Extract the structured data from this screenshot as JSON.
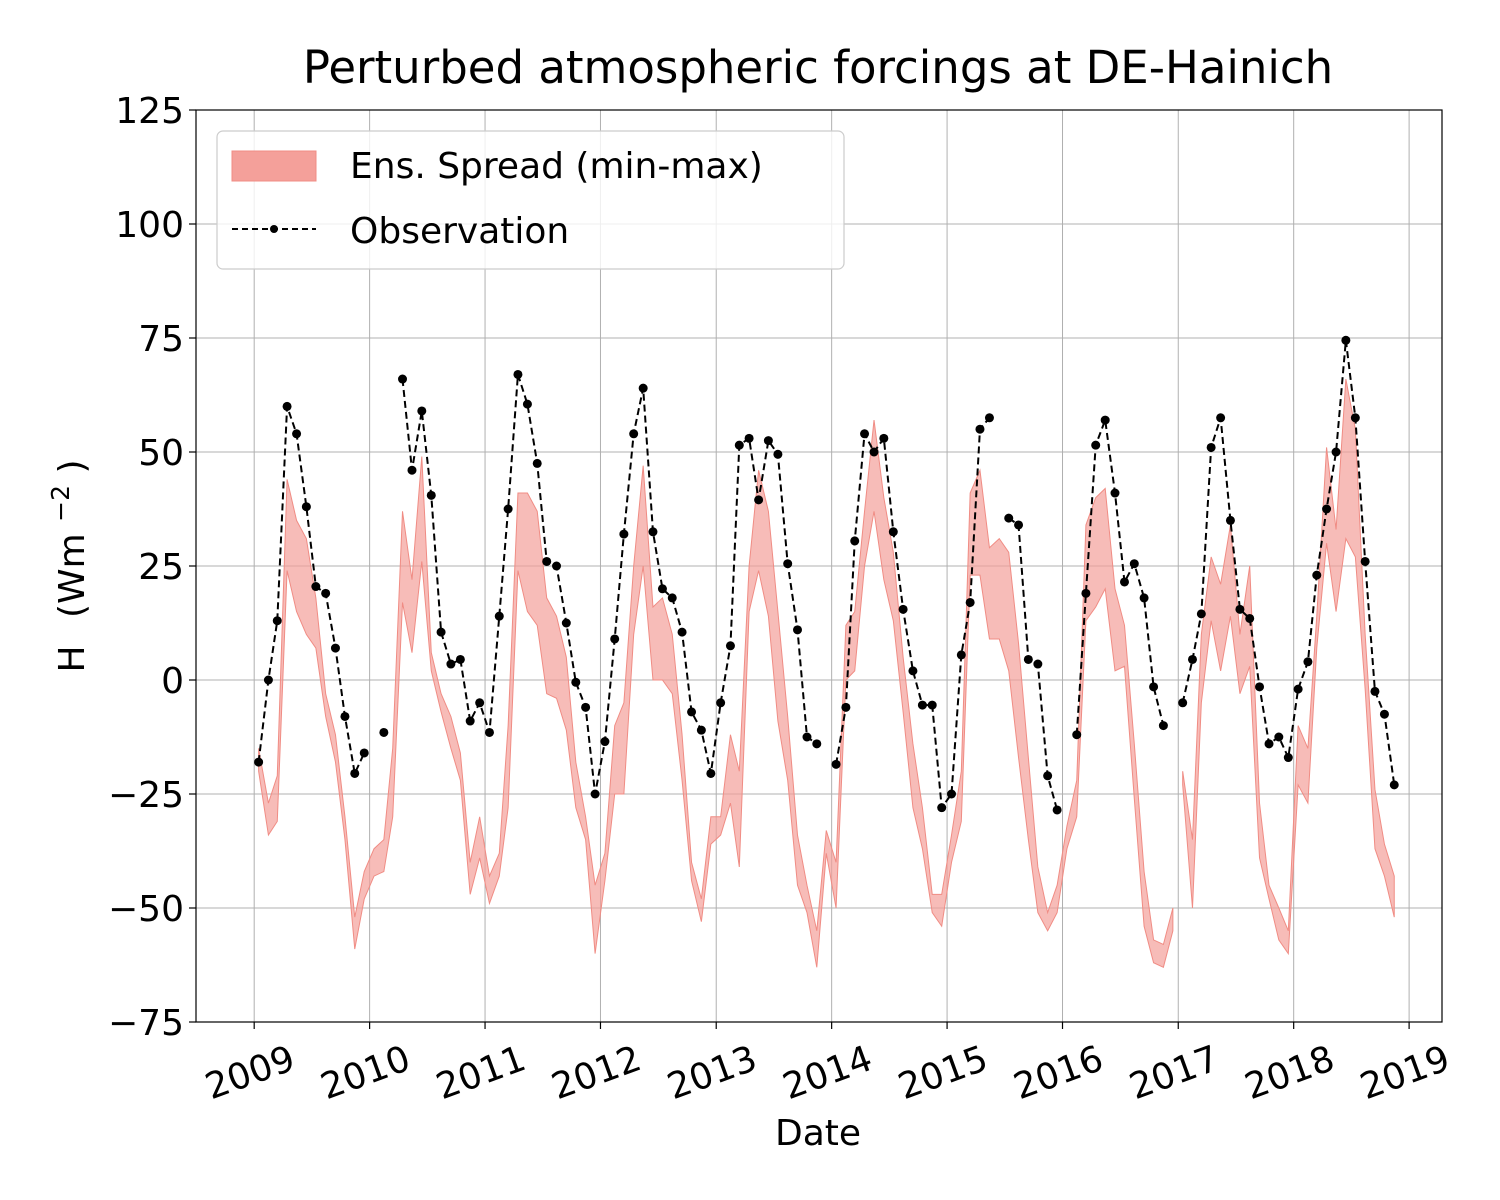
{
  "chart_data": {
    "type": "line",
    "title": "Perturbed atmospheric forcings at DE-Hainich",
    "xlabel": "Date",
    "ylabel": "H",
    "ylabel_unit": "(Wm",
    "ylabel_exp": "−2",
    "ylabel_close": ")",
    "ylim": [
      -75,
      125
    ],
    "xlim": [
      "2008-07-01",
      "2019-04-15"
    ],
    "yticks": [
      -75,
      -50,
      -25,
      0,
      25,
      50,
      75,
      100,
      125
    ],
    "ytick_labels": [
      "−75",
      "−50",
      "−25",
      "0",
      "25",
      "50",
      "75",
      "100",
      "125"
    ],
    "xticks": [
      "2009",
      "2010",
      "2011",
      "2012",
      "2013",
      "2014",
      "2015",
      "2016",
      "2017",
      "2018",
      "2019"
    ],
    "xtick_rotation": -20,
    "grid": true,
    "legend": {
      "position": "top-left",
      "entries": [
        {
          "label": "Ens. Spread (min-max)",
          "kind": "band",
          "color": "#f4a09a"
        },
        {
          "label": "Observation",
          "kind": "dashed-line-marker",
          "color": "#000000"
        }
      ]
    },
    "colors": {
      "band": "#f4a09a",
      "band_edge": "#f08c84",
      "observation": "#000000"
    },
    "series": [
      {
        "name": "Observation",
        "x": [
          "2009-01",
          "2009-02",
          "2009-03",
          "2009-04",
          "2009-05",
          "2009-06",
          "2009-07",
          "2009-08",
          "2009-09",
          "2009-10",
          "2009-11",
          "2009-12",
          "2010-01",
          "2010-02",
          "2010-03",
          "2010-04",
          "2010-05",
          "2010-06",
          "2010-07",
          "2010-08",
          "2010-09",
          "2010-10",
          "2010-11",
          "2010-12",
          "2011-01",
          "2011-02",
          "2011-03",
          "2011-04",
          "2011-05",
          "2011-06",
          "2011-07",
          "2011-08",
          "2011-09",
          "2011-10",
          "2011-11",
          "2011-12",
          "2012-01",
          "2012-02",
          "2012-03",
          "2012-04",
          "2012-05",
          "2012-06",
          "2012-07",
          "2012-08",
          "2012-09",
          "2012-10",
          "2012-11",
          "2012-12",
          "2013-01",
          "2013-02",
          "2013-03",
          "2013-04",
          "2013-05",
          "2013-06",
          "2013-07",
          "2013-08",
          "2013-09",
          "2013-10",
          "2013-11",
          "2013-12",
          "2014-01",
          "2014-02",
          "2014-03",
          "2014-04",
          "2014-05",
          "2014-06",
          "2014-07",
          "2014-08",
          "2014-09",
          "2014-10",
          "2014-11",
          "2014-12",
          "2015-01",
          "2015-02",
          "2015-03",
          "2015-04",
          "2015-05",
          "2015-06",
          "2015-07",
          "2015-08",
          "2015-09",
          "2015-10",
          "2015-11",
          "2015-12",
          "2016-01",
          "2016-02",
          "2016-03",
          "2016-04",
          "2016-05",
          "2016-06",
          "2016-07",
          "2016-08",
          "2016-09",
          "2016-10",
          "2016-11",
          "2016-12",
          "2017-01",
          "2017-02",
          "2017-03",
          "2017-04",
          "2017-05",
          "2017-06",
          "2017-07",
          "2017-08",
          "2017-09",
          "2017-10",
          "2017-11",
          "2017-12",
          "2018-01",
          "2018-02",
          "2018-03",
          "2018-04",
          "2018-05",
          "2018-06",
          "2018-07",
          "2018-08",
          "2018-09",
          "2018-10",
          "2018-11",
          "2018-12"
        ],
        "y": [
          -18,
          0,
          13,
          60,
          54,
          38,
          20.5,
          19,
          7,
          -8,
          -20.5,
          -16,
          null,
          -11.5,
          null,
          66,
          46,
          59,
          40.5,
          10.5,
          3.5,
          4.5,
          -9,
          -5,
          -11.5,
          14,
          37.5,
          67,
          60.5,
          47.5,
          26,
          25,
          12.5,
          -0.5,
          -6,
          -25,
          -13.5,
          9,
          32,
          54,
          64,
          32.5,
          20,
          18,
          10.5,
          -7,
          -11,
          -20.5,
          -5,
          7.5,
          51.5,
          53,
          39.5,
          52.5,
          49.5,
          25.5,
          11,
          -12.5,
          -14,
          null,
          -18.5,
          -6,
          30.5,
          54,
          50,
          53,
          32.5,
          15.5,
          2,
          -5.5,
          -5.5,
          -28,
          -25,
          5.5,
          17,
          55,
          57.5,
          null,
          35.5,
          34,
          4.5,
          3.5,
          -21,
          -28.5,
          null,
          -12,
          19,
          51.5,
          57,
          41,
          21.5,
          25.5,
          18,
          -1.5,
          -10,
          null,
          -5,
          4.5,
          14.5,
          51,
          57.5,
          35,
          15.5,
          13.5,
          -1.5,
          -14,
          -12.5,
          -17,
          -2,
          4,
          23,
          37.5,
          50,
          74.5,
          57.5,
          26,
          -2.5,
          -7.5,
          -23,
          null
        ]
      },
      {
        "name": "Ens. Spread (min-max)",
        "segments": [
          {
            "x": [
              "2009-01",
              "2009-02",
              "2009-03",
              "2009-04",
              "2009-05",
              "2009-06",
              "2009-07",
              "2009-08",
              "2009-09",
              "2009-10",
              "2009-11",
              "2009-12",
              "2010-01",
              "2010-02",
              "2010-03",
              "2010-04",
              "2010-05",
              "2010-06",
              "2010-07",
              "2010-08",
              "2010-09",
              "2010-10",
              "2010-11",
              "2010-12",
              "2011-01",
              "2011-02",
              "2011-03",
              "2011-04",
              "2011-05",
              "2011-06",
              "2011-07",
              "2011-08",
              "2011-09",
              "2011-10",
              "2011-11",
              "2011-12",
              "2012-01",
              "2012-02",
              "2012-03",
              "2012-04",
              "2012-05",
              "2012-06",
              "2012-07",
              "2012-08",
              "2012-09",
              "2012-10",
              "2012-11",
              "2012-12",
              "2013-01",
              "2013-02",
              "2013-03",
              "2013-04",
              "2013-05",
              "2013-06",
              "2013-07",
              "2013-08",
              "2013-09",
              "2013-10",
              "2013-11",
              "2013-12",
              "2014-01",
              "2014-02",
              "2014-03",
              "2014-04",
              "2014-05",
              "2014-06",
              "2014-07",
              "2014-08",
              "2014-09",
              "2014-10",
              "2014-11",
              "2014-12",
              "2015-01",
              "2015-02",
              "2015-03",
              "2015-04",
              "2015-05",
              "2015-06",
              "2015-07",
              "2015-08",
              "2015-09",
              "2015-10",
              "2015-11",
              "2015-12",
              "2016-01",
              "2016-02",
              "2016-03",
              "2016-04",
              "2016-05",
              "2016-06",
              "2016-07",
              "2016-08",
              "2016-09",
              "2016-10",
              "2016-11",
              "2016-12"
            ],
            "min": [
              -20,
              -34,
              -31,
              24,
              15,
              10,
              7,
              -8,
              -18,
              -35,
              -59,
              -48,
              -43,
              -42,
              -30,
              17,
              6,
              26,
              2,
              -7,
              -15,
              -22,
              -47,
              -39,
              -49,
              -43,
              -28,
              24,
              15,
              12,
              -3,
              -4,
              -11,
              -28,
              -35,
              -60,
              -44,
              -25,
              -25,
              10,
              25,
              0,
              0,
              -3,
              -22,
              -44,
              -53,
              -36,
              -34,
              -27,
              -41,
              15,
              24,
              14,
              -9,
              -22,
              -45,
              -51,
              -63,
              -38,
              -50,
              0,
              2,
              25,
              37,
              22,
              13,
              -7,
              -28,
              -37,
              -51,
              -54,
              -40,
              -31,
              23,
              23,
              9,
              9,
              2,
              -17,
              -35,
              -51,
              -55,
              -51,
              -37,
              -30,
              13,
              16,
              20,
              2,
              3,
              -26,
              -54,
              -62,
              -63,
              -55
            ]
          },
          {
            "x": [
              "2009-01",
              "2009-02",
              "2009-03",
              "2009-04",
              "2009-05",
              "2009-06",
              "2009-07",
              "2009-08",
              "2009-09",
              "2009-10",
              "2009-11",
              "2009-12",
              "2010-01",
              "2010-02",
              "2010-03",
              "2010-04",
              "2010-05",
              "2010-06",
              "2010-07",
              "2010-08",
              "2010-09",
              "2010-10",
              "2010-11",
              "2010-12",
              "2011-01",
              "2011-02",
              "2011-03",
              "2011-04",
              "2011-05",
              "2011-06",
              "2011-07",
              "2011-08",
              "2011-09",
              "2011-10",
              "2011-11",
              "2011-12",
              "2012-01",
              "2012-02",
              "2012-03",
              "2012-04",
              "2012-05",
              "2012-06",
              "2012-07",
              "2012-08",
              "2012-09",
              "2012-10",
              "2012-11",
              "2012-12",
              "2013-01",
              "2013-02",
              "2013-03",
              "2013-04",
              "2013-05",
              "2013-06",
              "2013-07",
              "2013-08",
              "2013-09",
              "2013-10",
              "2013-11",
              "2013-12",
              "2014-01",
              "2014-02",
              "2014-03",
              "2014-04",
              "2014-05",
              "2014-06",
              "2014-07",
              "2014-08",
              "2014-09",
              "2014-10",
              "2014-11",
              "2014-12",
              "2015-01",
              "2015-02",
              "2015-03",
              "2015-04",
              "2015-05",
              "2015-06",
              "2015-07",
              "2015-08",
              "2015-09",
              "2015-10",
              "2015-11",
              "2015-12",
              "2016-01",
              "2016-02",
              "2016-03",
              "2016-04",
              "2016-05",
              "2016-06",
              "2016-07",
              "2016-08",
              "2016-09",
              "2016-10",
              "2016-11",
              "2016-12"
            ],
            "max": [
              -15,
              -27,
              -21,
              44,
              35,
              31,
              18,
              -3,
              -12,
              -30,
              -52,
              -42,
              -37,
              -35,
              -15,
              37,
              22,
              49,
              6,
              -3,
              -8,
              -16,
              -40,
              -30,
              -43,
              -38,
              -10,
              41,
              41,
              37,
              18,
              14,
              5,
              -18,
              -30,
              -45,
              -38,
              -10,
              -5,
              25,
              47,
              16,
              18,
              10,
              -12,
              -40,
              -48,
              -30,
              -30,
              -12,
              -20,
              25,
              46,
              37,
              15,
              -8,
              -34,
              -45,
              -55,
              -33,
              -40,
              12,
              15,
              37,
              57,
              40,
              28,
              5,
              -14,
              -28,
              -47,
              -47,
              -34,
              -20,
              41,
              46,
              29,
              31,
              28,
              8,
              -17,
              -41,
              -51,
              -45,
              -32,
              -22,
              34,
              40,
              42,
              20,
              12,
              -14,
              -42,
              -57,
              -58,
              -50
            ]
          },
          {
            "x": [
              "2017-01",
              "2017-02",
              "2017-03",
              "2017-04",
              "2017-05",
              "2017-06",
              "2017-07",
              "2017-08",
              "2017-09",
              "2017-10",
              "2017-11",
              "2017-12",
              "2018-01",
              "2018-02",
              "2018-03",
              "2018-04",
              "2018-05",
              "2018-06",
              "2018-07",
              "2018-08",
              "2018-09",
              "2018-10",
              "2018-11",
              "2018-12"
            ],
            "min": [
              -23,
              -50,
              -5,
              13,
              2,
              14,
              -3,
              3,
              -39,
              -48,
              -57,
              -60,
              -23,
              -27,
              7,
              30,
              15,
              31,
              27,
              -2,
              -37,
              -43,
              -52,
              null
            ],
            "max": [
              -20,
              -35,
              10,
              27,
              21,
              34,
              10,
              25,
              -27,
              -45,
              -50,
              -55,
              -10,
              -15,
              14,
              51,
              33,
              66,
              55,
              10,
              -24,
              -36,
              -43,
              null
            ]
          }
        ]
      }
    ]
  }
}
